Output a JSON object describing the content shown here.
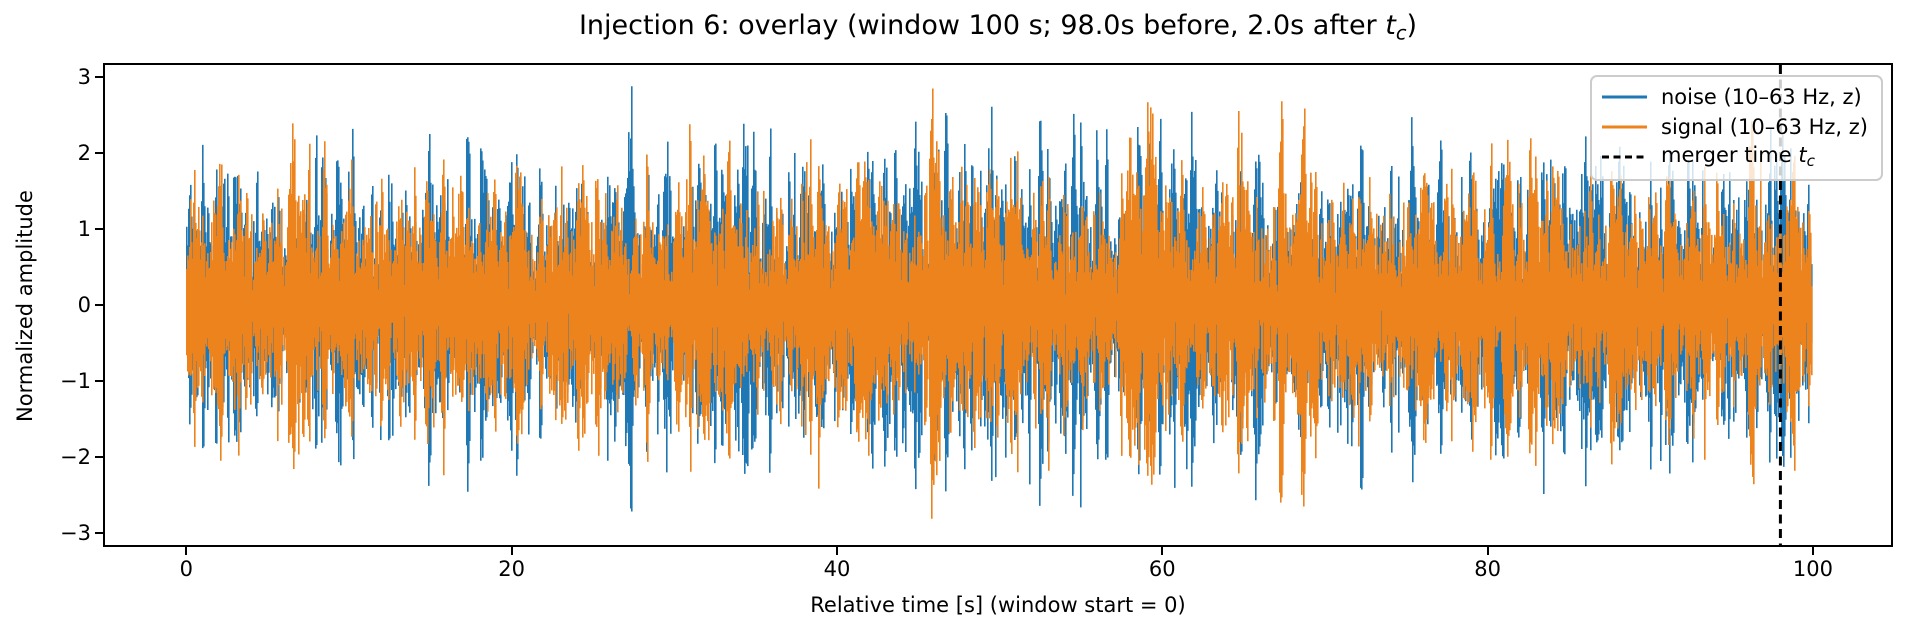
{
  "chart_data": {
    "type": "line",
    "title_text": "Injection 6: overlay (window 100 s; 98.0s before, 2.0s after tc)",
    "title_parts": [
      {
        "t": "Injection 6: overlay (window 100 s; 98.0s before, 2.0s after "
      },
      {
        "t": "t",
        "style": "i"
      },
      {
        "t": "c",
        "style": "isub"
      },
      {
        "t": ")"
      }
    ],
    "injection_index": 6,
    "window_s": 100,
    "before_s": 98.0,
    "after_s": 2.0,
    "xlabel": "Relative time [s] (window start = 0)",
    "ylabel": "Normalized amplitude",
    "xlim": [
      -5.0,
      104.8
    ],
    "ylim": [
      -3.16,
      3.16
    ],
    "x_ticks": [
      0,
      20,
      40,
      60,
      80,
      100
    ],
    "y_ticks": [
      -3,
      -2,
      -1,
      0,
      1,
      2,
      3
    ],
    "grid": false,
    "series": [
      {
        "name": "noise (10–63 Hz, z)",
        "color": "#1f77b4",
        "t_start": 0,
        "t_end": 100,
        "peak_abs": 2.88,
        "zero_mean": true,
        "description": "Band-passed (10–63 Hz), z-scored noise strain: dense oscillations filling roughly ±1.4 with spikes up to ±2.9 over the whole 0–100 s window"
      },
      {
        "name": "signal (10–63 Hz, z)",
        "color": "#ec831d",
        "t_start": 0,
        "t_end": 100,
        "peak_abs": 2.85,
        "zero_mean": true,
        "description": "Band-passed (10–63 Hz), z-scored noise+injection strain, drawn on top of the noise trace and visually indistinguishable from it"
      }
    ],
    "annotations": [
      {
        "type": "vline",
        "x": 98,
        "color": "#000000",
        "style": "dashed",
        "label_parts": [
          {
            "t": "merger time "
          },
          {
            "t": "t",
            "style": "i"
          },
          {
            "t": "c",
            "style": "isub"
          }
        ]
      }
    ],
    "legend": {
      "position": "upper right",
      "entries": [
        {
          "color": "#1f77b4",
          "dash": null,
          "parts": [
            {
              "t": "noise (10–63 Hz, z)"
            }
          ]
        },
        {
          "color": "#ec831d",
          "dash": null,
          "parts": [
            {
              "t": "signal (10–63 Hz, z)"
            }
          ]
        },
        {
          "color": "#000000",
          "dash": "7 4.5",
          "parts": [
            {
              "t": "merger time "
            },
            {
              "t": "t",
              "style": "i"
            },
            {
              "t": "c",
              "style": "isub"
            }
          ]
        }
      ]
    }
  }
}
